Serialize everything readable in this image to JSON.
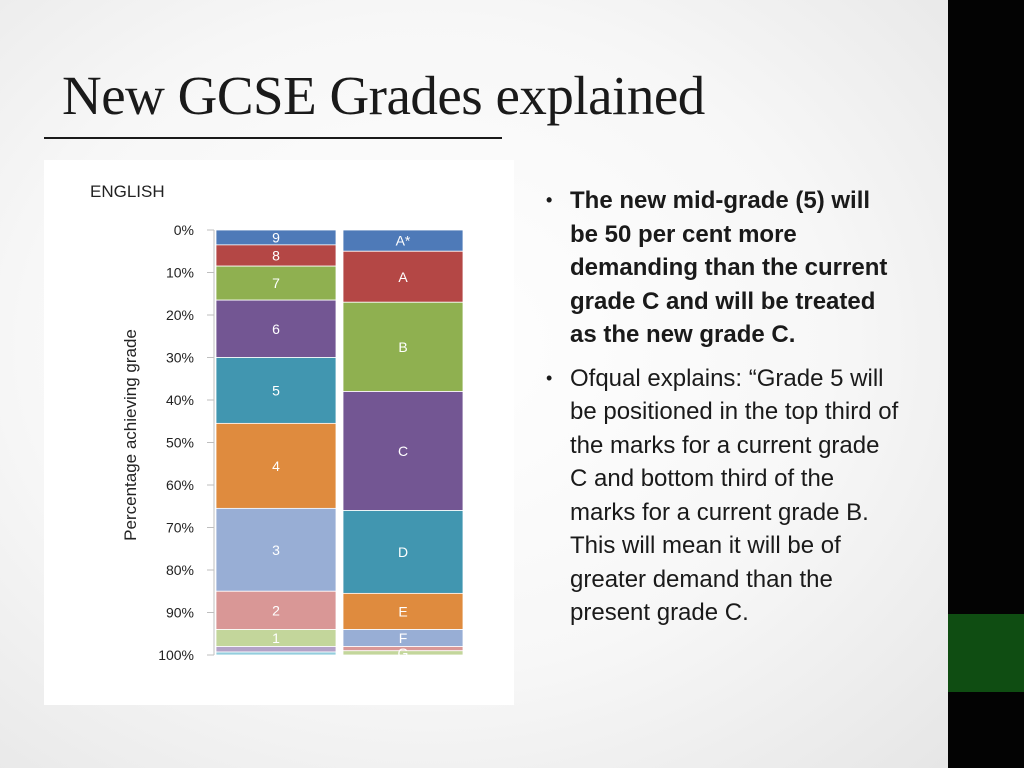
{
  "slide": {
    "title": "New GCSE Grades explained",
    "bullets": [
      {
        "text": "The new mid-grade (5) will be 50 per cent more demanding than the current grade C and will be treated as the new grade C.",
        "bold": true
      },
      {
        "text": "Ofqual explains: “Grade 5 will be positioned in the top third of the marks for a current grade C and bottom third of the marks for a current grade B. This will mean it will be of greater demand than the present grade C.",
        "bold": false
      }
    ]
  },
  "colors": {
    "sidebar": "#030303",
    "sidebar_accent": "#0f4d12"
  },
  "chart_data": {
    "type": "bar",
    "stacked": true,
    "title": "ENGLISH",
    "ylabel": "Percentage achieving grade",
    "ylim": [
      0,
      100
    ],
    "y_axis_inverted": true,
    "yticks": [
      "0%",
      "10%",
      "20%",
      "30%",
      "40%",
      "50%",
      "60%",
      "70%",
      "80%",
      "90%",
      "100%"
    ],
    "yticks_values": [
      0,
      10,
      20,
      30,
      40,
      50,
      60,
      70,
      80,
      90,
      100
    ],
    "grid": false,
    "legend": "none",
    "columns": [
      {
        "segments": [
          {
            "label": "9",
            "from": 0,
            "to": 3.5,
            "color": "#4e7ab8"
          },
          {
            "label": "8",
            "from": 3.5,
            "to": 8.5,
            "color": "#b44745"
          },
          {
            "label": "7",
            "from": 8.5,
            "to": 16.5,
            "color": "#8fb050"
          },
          {
            "label": "6",
            "from": 16.5,
            "to": 30,
            "color": "#735693"
          },
          {
            "label": "5",
            "from": 30,
            "to": 45.5,
            "color": "#4196b0"
          },
          {
            "label": "4",
            "from": 45.5,
            "to": 65.5,
            "color": "#df8b3e"
          },
          {
            "label": "3",
            "from": 65.5,
            "to": 85,
            "color": "#98aed5"
          },
          {
            "label": "2",
            "from": 85,
            "to": 94,
            "color": "#d99796"
          },
          {
            "label": "1",
            "from": 94,
            "to": 98,
            "color": "#c3d69b"
          },
          {
            "label": "",
            "from": 98,
            "to": 99.3,
            "color": "#b3a2c7"
          },
          {
            "label": "",
            "from": 99.3,
            "to": 100,
            "color": "#93cddd"
          }
        ]
      },
      {
        "segments": [
          {
            "label": "A*",
            "from": 0,
            "to": 5,
            "color": "#4e7ab8"
          },
          {
            "label": "A",
            "from": 5,
            "to": 17,
            "color": "#b44745"
          },
          {
            "label": "B",
            "from": 17,
            "to": 38,
            "color": "#8fb050"
          },
          {
            "label": "C",
            "from": 38,
            "to": 66,
            "color": "#735693"
          },
          {
            "label": "D",
            "from": 66,
            "to": 85.5,
            "color": "#4196b0"
          },
          {
            "label": "E",
            "from": 85.5,
            "to": 94,
            "color": "#df8b3e"
          },
          {
            "label": "F",
            "from": 94,
            "to": 98,
            "color": "#98aed5"
          },
          {
            "label": "",
            "from": 98,
            "to": 99,
            "color": "#d99796"
          },
          {
            "label": "G",
            "from": 99,
            "to": 100,
            "color": "#c3d69b"
          }
        ]
      }
    ]
  }
}
